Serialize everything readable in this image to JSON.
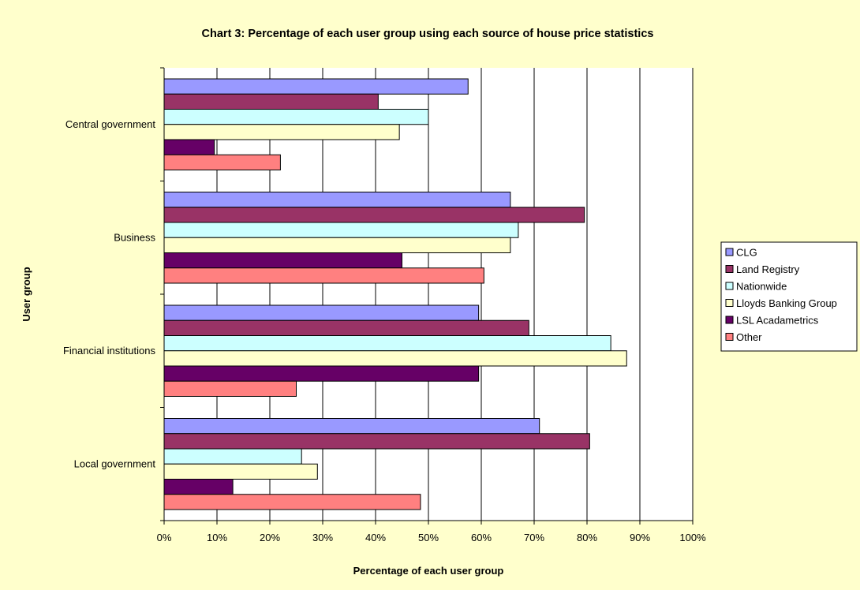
{
  "chart_data": {
    "type": "bar",
    "orientation": "horizontal",
    "title": "Chart 3: Percentage of each user group using each source of house price statistics",
    "xlabel": "Percentage of each user group",
    "ylabel": "User group",
    "xlim": [
      0,
      100
    ],
    "x_ticks": [
      "0%",
      "10%",
      "20%",
      "30%",
      "40%",
      "50%",
      "60%",
      "70%",
      "80%",
      "90%",
      "100%"
    ],
    "grid": "vertical",
    "legend_position": "right",
    "categories": [
      "Central government",
      "Business",
      "Financial institutions",
      "Local government"
    ],
    "series": [
      {
        "name": "CLG",
        "color": "#9999ff",
        "values": [
          57.5,
          65.5,
          59.5,
          71
        ]
      },
      {
        "name": "Land Registry",
        "color": "#993366",
        "values": [
          40.5,
          79.5,
          69,
          80.5
        ]
      },
      {
        "name": "Nationwide",
        "color": "#ccffff",
        "values": [
          50,
          67,
          84.5,
          26
        ]
      },
      {
        "name": "Lloyds Banking Group",
        "color": "#ffffcc",
        "values": [
          44.5,
          65.5,
          87.5,
          29
        ]
      },
      {
        "name": "LSL Acadametrics",
        "color": "#660066",
        "values": [
          9.5,
          45,
          59.5,
          13
        ]
      },
      {
        "name": "Other",
        "color": "#ff8080",
        "values": [
          22,
          60.5,
          25,
          48.5
        ]
      }
    ]
  }
}
